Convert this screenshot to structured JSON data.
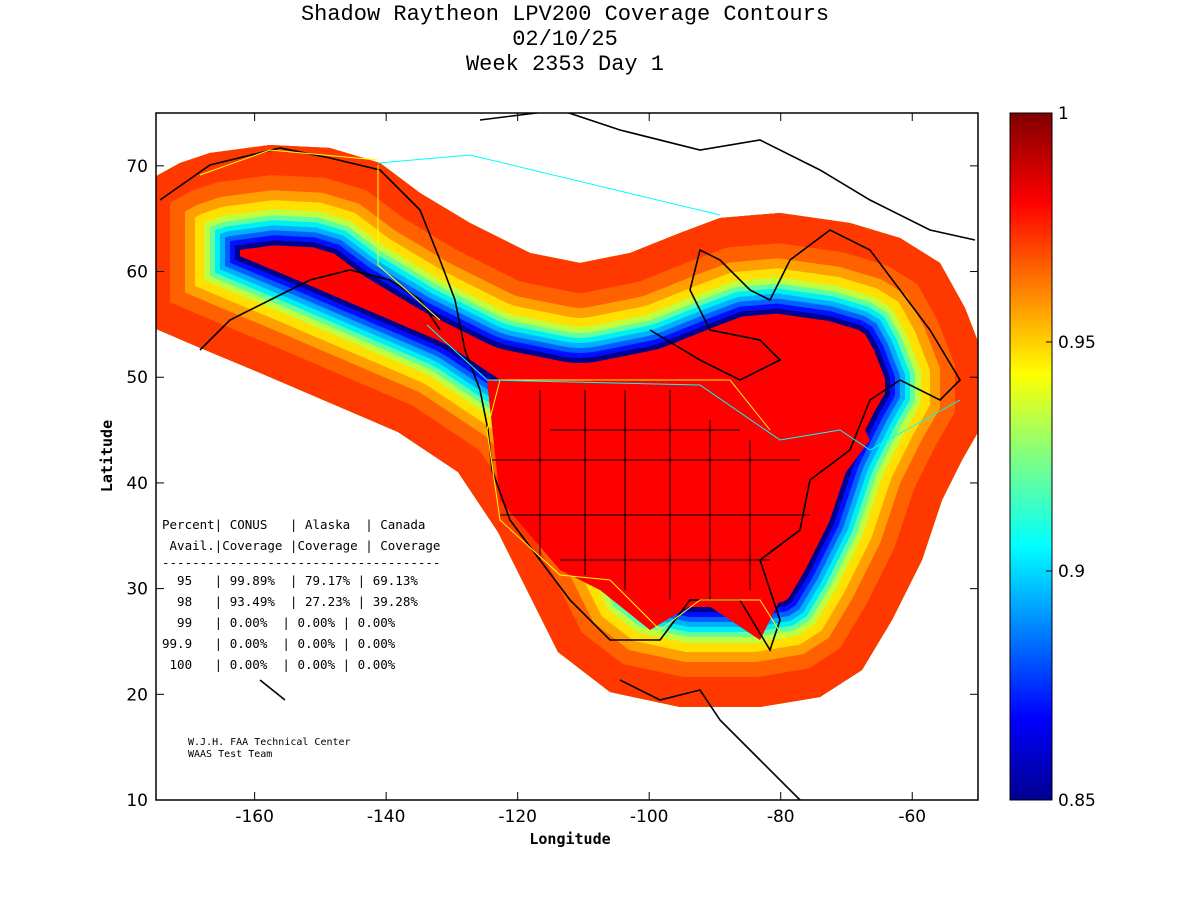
{
  "title": {
    "line1": "Shadow Raytheon LPV200 Coverage Contours",
    "line2": "02/10/25",
    "line3": "Week 2353 Day 1"
  },
  "chart_data": {
    "type": "heatmap",
    "xlabel": "Longitude",
    "ylabel": "Latitude",
    "xlim": [
      -175,
      -50
    ],
    "ylim": [
      10,
      75
    ],
    "xticks": [
      -160,
      -140,
      -120,
      -100,
      -80,
      -60
    ],
    "yticks": [
      10,
      20,
      30,
      40,
      50,
      60,
      70
    ],
    "colorbar": {
      "range": [
        0.85,
        1
      ],
      "ticks": [
        "1",
        "0.95",
        "0.9",
        "0.85"
      ],
      "tick_values": [
        1,
        0.95,
        0.9,
        0.85
      ]
    },
    "colors": [
      "#00008f",
      "#0010ff",
      "#0060ff",
      "#00b0ff",
      "#00f0f0",
      "#60ffa0",
      "#c0ff40",
      "#ffe000",
      "#ffa000",
      "#ff6000",
      "#ff3800",
      "#ff0000"
    ]
  },
  "table": {
    "header1": "Percent| CONUS   | Alaska  | Canada",
    "header2": " Avail.|Coverage |Coverage | Coverage",
    "separator": "-------------------------------------",
    "rows": [
      "  95   | 99.89%  | 79.17% | 69.13%",
      "  98   | 93.49%  | 27.23% | 39.28%",
      "  99   | 0.00%  | 0.00% | 0.00%",
      "99.9   | 0.00%  | 0.00% | 0.00%",
      " 100   | 0.00%  | 0.00% | 0.00%"
    ]
  },
  "credit": {
    "line1": "W.J.H. FAA Technical Center",
    "line2": "WAAS Test Team"
  }
}
